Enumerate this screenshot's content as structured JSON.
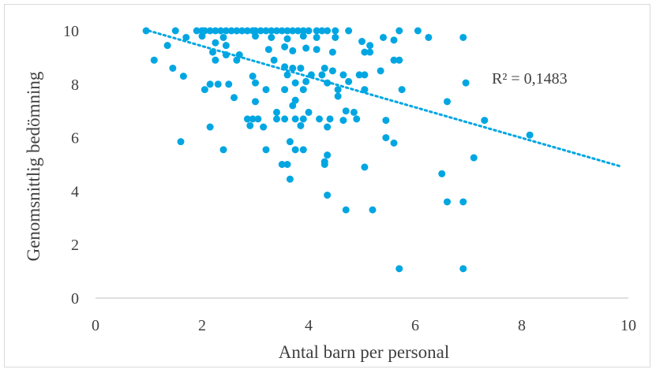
{
  "chart_data": {
    "type": "scatter",
    "xlabel": "Antal barn per personal",
    "ylabel": "Genomsnittlig bedömning",
    "xlim": [
      0,
      10
    ],
    "ylim": [
      0,
      10
    ],
    "x_ticks": [
      "0",
      "2",
      "4",
      "6",
      "8",
      "10"
    ],
    "y_ticks": [
      "0",
      "2",
      "4",
      "6",
      "8",
      "10"
    ],
    "grid": false,
    "legend": "none",
    "marker_color": "#00A6E2",
    "trendline": {
      "type": "linear",
      "label": "R² = 0,1483",
      "start": [
        1.0,
        10.0
      ],
      "end": [
        9.85,
        4.93
      ],
      "style": "dotted",
      "color": "#00A6E2"
    },
    "points": [
      [
        0.95,
        10
      ],
      [
        1.5,
        10
      ],
      [
        1.9,
        10
      ],
      [
        2.0,
        10
      ],
      [
        2.05,
        10
      ],
      [
        2.15,
        10
      ],
      [
        2.25,
        10
      ],
      [
        2.35,
        10
      ],
      [
        2.45,
        10
      ],
      [
        2.55,
        10
      ],
      [
        2.65,
        10
      ],
      [
        2.75,
        10
      ],
      [
        2.85,
        10
      ],
      [
        2.95,
        10
      ],
      [
        3.0,
        10
      ],
      [
        3.1,
        10
      ],
      [
        3.2,
        10
      ],
      [
        3.3,
        10
      ],
      [
        3.4,
        10
      ],
      [
        3.5,
        10
      ],
      [
        3.6,
        10
      ],
      [
        3.7,
        10
      ],
      [
        3.8,
        10
      ],
      [
        3.9,
        10
      ],
      [
        4.0,
        10
      ],
      [
        4.15,
        10
      ],
      [
        4.25,
        10
      ],
      [
        4.35,
        10
      ],
      [
        4.5,
        10
      ],
      [
        4.75,
        10
      ],
      [
        5.7,
        10
      ],
      [
        6.05,
        10
      ],
      [
        1.7,
        9.75
      ],
      [
        2.0,
        9.8
      ],
      [
        2.4,
        9.75
      ],
      [
        3.0,
        9.8
      ],
      [
        3.3,
        9.75
      ],
      [
        3.6,
        9.7
      ],
      [
        3.9,
        9.8
      ],
      [
        4.15,
        9.75
      ],
      [
        4.5,
        9.75
      ],
      [
        5.0,
        9.6
      ],
      [
        5.15,
        9.45
      ],
      [
        5.4,
        9.75
      ],
      [
        5.6,
        9.65
      ],
      [
        6.25,
        9.75
      ],
      [
        6.9,
        9.75
      ],
      [
        1.35,
        9.45
      ],
      [
        2.25,
        9.55
      ],
      [
        2.45,
        9.45
      ],
      [
        3.25,
        9.3
      ],
      [
        3.55,
        9.4
      ],
      [
        3.95,
        9.35
      ],
      [
        4.15,
        9.3
      ],
      [
        4.45,
        9.2
      ],
      [
        5.05,
        9.2
      ],
      [
        5.15,
        9.2
      ],
      [
        2.2,
        9.2
      ],
      [
        2.7,
        9.1
      ],
      [
        2.45,
        9.1
      ],
      [
        3.7,
        9.25
      ],
      [
        1.1,
        8.9
      ],
      [
        2.25,
        8.9
      ],
      [
        2.65,
        8.9
      ],
      [
        3.35,
        8.9
      ],
      [
        5.6,
        8.9
      ],
      [
        5.7,
        8.9
      ],
      [
        1.45,
        8.6
      ],
      [
        3.55,
        8.65
      ],
      [
        3.7,
        8.6
      ],
      [
        3.85,
        8.6
      ],
      [
        4.3,
        8.6
      ],
      [
        4.45,
        8.5
      ],
      [
        5.35,
        8.5
      ],
      [
        1.65,
        8.3
      ],
      [
        2.95,
        8.3
      ],
      [
        3.6,
        8.35
      ],
      [
        4.05,
        8.35
      ],
      [
        4.25,
        8.35
      ],
      [
        4.65,
        8.35
      ],
      [
        4.95,
        8.35
      ],
      [
        5.05,
        8.35
      ],
      [
        2.3,
        8.0
      ],
      [
        2.15,
        8.0
      ],
      [
        2.5,
        8.0
      ],
      [
        3.0,
        8.05
      ],
      [
        3.75,
        8.05
      ],
      [
        3.95,
        8.1
      ],
      [
        4.35,
        8.05
      ],
      [
        4.75,
        8.1
      ],
      [
        6.95,
        8.05
      ],
      [
        2.05,
        7.8
      ],
      [
        3.2,
        7.8
      ],
      [
        3.55,
        7.8
      ],
      [
        3.9,
        7.8
      ],
      [
        4.55,
        7.8
      ],
      [
        5.05,
        7.8
      ],
      [
        5.75,
        7.8
      ],
      [
        2.6,
        7.5
      ],
      [
        3.75,
        7.4
      ],
      [
        4.55,
        7.55
      ],
      [
        3.0,
        7.35
      ],
      [
        3.7,
        7.2
      ],
      [
        6.6,
        7.35
      ],
      [
        3.4,
        6.95
      ],
      [
        4.0,
        6.95
      ],
      [
        4.7,
        7.0
      ],
      [
        4.85,
        6.95
      ],
      [
        2.85,
        6.7
      ],
      [
        2.95,
        6.7
      ],
      [
        3.05,
        6.7
      ],
      [
        3.4,
        6.7
      ],
      [
        3.55,
        6.7
      ],
      [
        3.75,
        6.7
      ],
      [
        3.9,
        6.7
      ],
      [
        4.2,
        6.7
      ],
      [
        4.4,
        6.7
      ],
      [
        4.65,
        6.65
      ],
      [
        4.9,
        6.7
      ],
      [
        5.45,
        6.65
      ],
      [
        7.3,
        6.65
      ],
      [
        2.9,
        6.45
      ],
      [
        3.15,
        6.4
      ],
      [
        4.35,
        6.4
      ],
      [
        3.85,
        6.45
      ],
      [
        2.15,
        6.4
      ],
      [
        8.15,
        6.1
      ],
      [
        5.45,
        6.0
      ],
      [
        1.6,
        5.85
      ],
      [
        3.65,
        5.85
      ],
      [
        5.6,
        5.8
      ],
      [
        2.4,
        5.55
      ],
      [
        3.2,
        5.55
      ],
      [
        3.75,
        5.55
      ],
      [
        3.9,
        5.55
      ],
      [
        4.35,
        5.35
      ],
      [
        7.1,
        5.25
      ],
      [
        4.3,
        5.1
      ],
      [
        3.5,
        5.0
      ],
      [
        3.6,
        5.0
      ],
      [
        4.3,
        5.0
      ],
      [
        5.05,
        4.9
      ],
      [
        6.5,
        4.65
      ],
      [
        3.65,
        4.45
      ],
      [
        4.35,
        3.85
      ],
      [
        6.6,
        3.6
      ],
      [
        6.9,
        3.6
      ],
      [
        4.7,
        3.3
      ],
      [
        5.2,
        3.3
      ],
      [
        5.7,
        1.1
      ],
      [
        6.9,
        1.1
      ]
    ]
  }
}
